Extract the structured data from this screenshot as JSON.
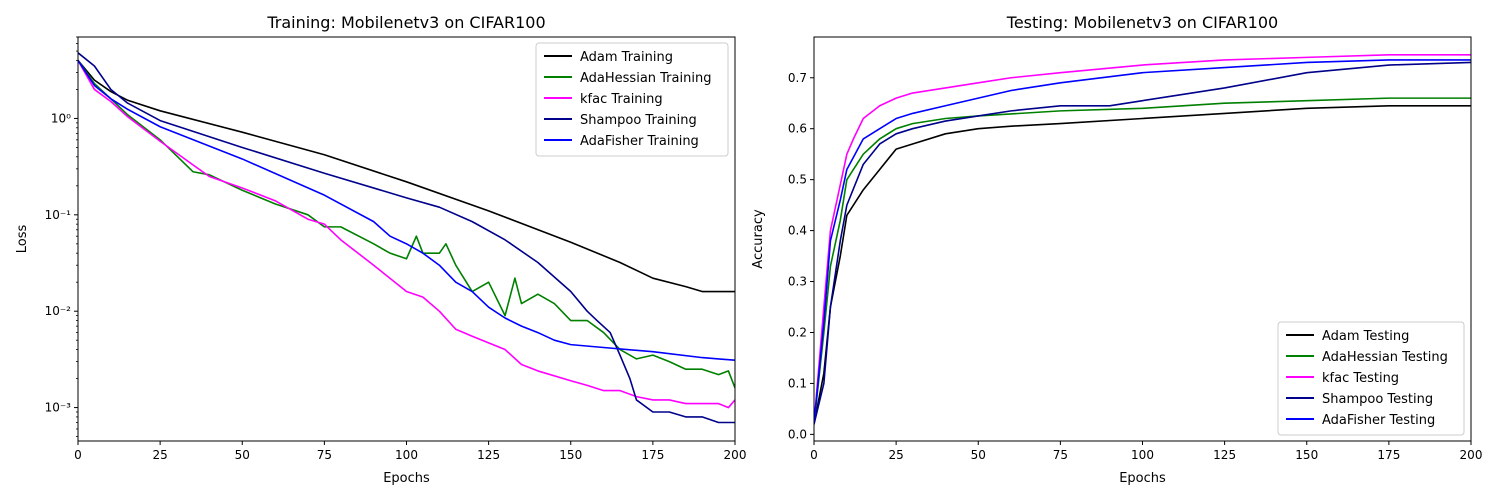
{
  "chart_data": [
    {
      "type": "line",
      "title": "Training: Mobilenetv3 on CIFAR100",
      "xlabel": "Epochs",
      "ylabel": "Loss",
      "yscale": "log",
      "xlim": [
        0,
        200
      ],
      "ylim": [
        0.00045,
        7
      ],
      "xticks": [
        0,
        25,
        50,
        75,
        100,
        125,
        150,
        175,
        200
      ],
      "yticks": [
        0.001,
        0.01,
        0.1,
        1
      ],
      "yticklabels": [
        "10⁻³",
        "10⁻²",
        "10⁻¹",
        "10⁰"
      ],
      "legend_position": "top-right",
      "series": [
        {
          "name": "Adam Training",
          "color": "#000000",
          "x": [
            0,
            5,
            10,
            15,
            25,
            50,
            75,
            100,
            125,
            150,
            165,
            175,
            185,
            190,
            200
          ],
          "y": [
            4.0,
            2.5,
            1.9,
            1.55,
            1.2,
            0.72,
            0.42,
            0.22,
            0.11,
            0.052,
            0.032,
            0.022,
            0.018,
            0.016,
            0.016
          ]
        },
        {
          "name": "AdaHessian Training",
          "color": "#008000",
          "x": [
            0,
            5,
            10,
            15,
            25,
            35,
            40,
            50,
            60,
            70,
            75,
            80,
            90,
            95,
            100,
            103,
            105,
            110,
            112,
            115,
            120,
            125,
            130,
            133,
            135,
            140,
            145,
            150,
            155,
            160,
            165,
            170,
            175,
            180,
            185,
            190,
            195,
            198,
            200
          ],
          "y": [
            4.0,
            2.3,
            1.6,
            1.1,
            0.6,
            0.28,
            0.26,
            0.18,
            0.13,
            0.1,
            0.075,
            0.075,
            0.05,
            0.04,
            0.035,
            0.06,
            0.04,
            0.04,
            0.05,
            0.03,
            0.016,
            0.02,
            0.009,
            0.022,
            0.012,
            0.015,
            0.012,
            0.008,
            0.008,
            0.006,
            0.004,
            0.0032,
            0.0035,
            0.003,
            0.0025,
            0.0025,
            0.0022,
            0.0024,
            0.0016
          ]
        },
        {
          "name": "kfac Training",
          "color": "#ff00ff",
          "x": [
            0,
            5,
            10,
            15,
            25,
            35,
            40,
            50,
            60,
            70,
            75,
            80,
            90,
            100,
            105,
            110,
            115,
            120,
            130,
            135,
            140,
            150,
            155,
            160,
            165,
            170,
            175,
            180,
            185,
            190,
            195,
            198,
            200
          ],
          "y": [
            4.0,
            2.0,
            1.5,
            1.05,
            0.58,
            0.33,
            0.25,
            0.19,
            0.14,
            0.09,
            0.08,
            0.055,
            0.03,
            0.016,
            0.014,
            0.01,
            0.0065,
            0.0055,
            0.004,
            0.0028,
            0.0024,
            0.0019,
            0.0017,
            0.0015,
            0.0015,
            0.0013,
            0.0012,
            0.0012,
            0.0011,
            0.0011,
            0.0011,
            0.001,
            0.0012
          ]
        },
        {
          "name": "Shampoo Training",
          "color": "#00008b",
          "x": [
            0,
            5,
            10,
            15,
            25,
            50,
            75,
            100,
            110,
            120,
            130,
            140,
            150,
            155,
            158,
            162,
            165,
            168,
            170,
            175,
            180,
            185,
            190,
            195,
            200
          ],
          "y": [
            4.8,
            3.5,
            2.0,
            1.45,
            0.95,
            0.5,
            0.27,
            0.15,
            0.12,
            0.085,
            0.055,
            0.032,
            0.016,
            0.01,
            0.008,
            0.006,
            0.0035,
            0.002,
            0.0012,
            0.0009,
            0.0009,
            0.0008,
            0.0008,
            0.0007,
            0.0007
          ]
        },
        {
          "name": "AdaFisher Training",
          "color": "#0000ff",
          "x": [
            0,
            5,
            10,
            15,
            25,
            50,
            75,
            90,
            95,
            100,
            105,
            110,
            115,
            120,
            125,
            130,
            135,
            140,
            145,
            150,
            160,
            175,
            190,
            195,
            200
          ],
          "y": [
            4.0,
            2.2,
            1.6,
            1.25,
            0.82,
            0.38,
            0.16,
            0.085,
            0.06,
            0.05,
            0.04,
            0.03,
            0.02,
            0.016,
            0.011,
            0.0085,
            0.007,
            0.006,
            0.005,
            0.0045,
            0.0042,
            0.0038,
            0.0033,
            0.0032,
            0.0031
          ]
        }
      ]
    },
    {
      "type": "line",
      "title": "Testing: Mobilenetv3 on CIFAR100",
      "xlabel": "Epochs",
      "ylabel": "Accuracy",
      "xlim": [
        0,
        200
      ],
      "ylim": [
        -0.013,
        0.78
      ],
      "xticks": [
        0,
        25,
        50,
        75,
        100,
        125,
        150,
        175,
        200
      ],
      "yticks": [
        0.0,
        0.1,
        0.2,
        0.3,
        0.4,
        0.5,
        0.6,
        0.7
      ],
      "yticklabels": [
        "0.0",
        "0.1",
        "0.2",
        "0.3",
        "0.4",
        "0.5",
        "0.6",
        "0.7"
      ],
      "legend_position": "bottom-right",
      "series": [
        {
          "name": "Adam Testing",
          "color": "#000000",
          "x": [
            0,
            3,
            5,
            8,
            10,
            15,
            20,
            25,
            30,
            40,
            50,
            60,
            75,
            100,
            125,
            150,
            175,
            200
          ],
          "y": [
            0.02,
            0.12,
            0.25,
            0.35,
            0.43,
            0.48,
            0.52,
            0.56,
            0.57,
            0.59,
            0.6,
            0.605,
            0.61,
            0.62,
            0.63,
            0.64,
            0.645,
            0.645
          ]
        },
        {
          "name": "AdaHessian Testing",
          "color": "#008000",
          "x": [
            0,
            3,
            5,
            8,
            10,
            15,
            20,
            25,
            30,
            40,
            50,
            75,
            100,
            125,
            150,
            175,
            200
          ],
          "y": [
            0.02,
            0.2,
            0.33,
            0.42,
            0.5,
            0.55,
            0.58,
            0.6,
            0.61,
            0.62,
            0.625,
            0.635,
            0.64,
            0.65,
            0.655,
            0.66,
            0.66
          ]
        },
        {
          "name": "kfac Testing",
          "color": "#ff00ff",
          "x": [
            0,
            3,
            5,
            8,
            10,
            12,
            15,
            20,
            25,
            30,
            40,
            50,
            60,
            75,
            100,
            125,
            150,
            175,
            200
          ],
          "y": [
            0.02,
            0.25,
            0.4,
            0.49,
            0.55,
            0.58,
            0.62,
            0.645,
            0.66,
            0.67,
            0.68,
            0.69,
            0.7,
            0.71,
            0.725,
            0.735,
            0.74,
            0.745,
            0.745
          ]
        },
        {
          "name": "Shampoo Testing",
          "color": "#00008b",
          "x": [
            0,
            3,
            5,
            8,
            10,
            15,
            20,
            25,
            30,
            40,
            50,
            60,
            75,
            90,
            100,
            110,
            125,
            150,
            175,
            200
          ],
          "y": [
            0.02,
            0.1,
            0.25,
            0.38,
            0.45,
            0.53,
            0.57,
            0.59,
            0.6,
            0.615,
            0.625,
            0.635,
            0.645,
            0.645,
            0.655,
            0.665,
            0.68,
            0.71,
            0.725,
            0.73
          ]
        },
        {
          "name": "AdaFisher Testing",
          "color": "#0000ff",
          "x": [
            0,
            3,
            5,
            8,
            10,
            15,
            20,
            25,
            30,
            40,
            50,
            60,
            75,
            100,
            125,
            150,
            175,
            200
          ],
          "y": [
            0.02,
            0.22,
            0.38,
            0.46,
            0.52,
            0.58,
            0.6,
            0.62,
            0.63,
            0.645,
            0.66,
            0.675,
            0.69,
            0.71,
            0.72,
            0.73,
            0.735,
            0.735
          ]
        }
      ]
    }
  ]
}
